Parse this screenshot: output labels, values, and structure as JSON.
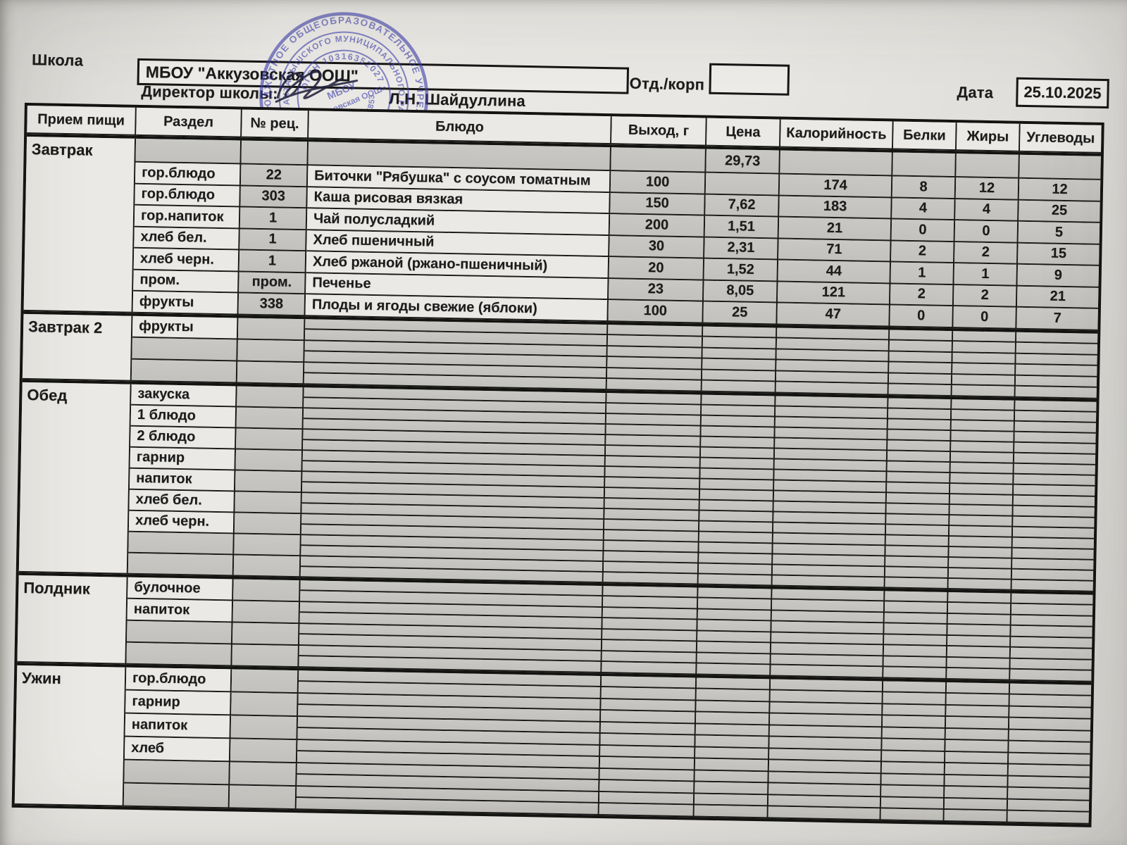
{
  "header": {
    "school_label": "Школа",
    "school_name": "МБОУ \"Аккузовская ООШ\"",
    "director_label": "Директор школы:",
    "director_name": "Л.Н. Шайдуллина",
    "dept_label": "Отд./корп",
    "dept_value": "",
    "date_label": "Дата",
    "date_value": "25.10.2025",
    "stamp": {
      "outer_ring": "БЮДЖЕТНОЕ ОБЩЕОБРАЗОВАТЕЛЬНОЕ УЧРЕЖДЕНИЕ «АККУЗОВСКАЯ ОСНОВНАЯ ОБЩЕОБРАЗОВАТЕЛЬНАЯ ШКОЛА»",
      "middle_ring": "АКТАНЫШСКОГО МУНИЦИПАЛЬНОГО РАЙОНА РЕСПУБЛИКИ ТАТАРСТАН",
      "ogrn_ring": "ОГРН 1031635202774",
      "center_line1": "МБОУ",
      "center_line2": "«Аккузовская ООШ»",
      "inn_text": "ИНН 1604005853",
      "color": "#3d3dab"
    }
  },
  "table": {
    "columns": [
      "Прием пищи",
      "Раздел",
      "№ рец.",
      "Блюдо",
      "Выход, г",
      "Цена",
      "Калорийность",
      "Белки",
      "Жиры",
      "Углеводы"
    ],
    "sections": [
      {
        "meal": "Завтрак",
        "split": false,
        "rows": [
          {
            "razdel": "",
            "rec": "",
            "dish": "",
            "out": "",
            "price": "29,73",
            "cal": "",
            "prot": "",
            "fat": "",
            "carb": ""
          },
          {
            "razdel": "гор.блюдо",
            "rec": "22",
            "dish": "Биточки \"Рябушка\" с соусом томатным",
            "out": "100",
            "price": "",
            "cal": "174",
            "prot": "8",
            "fat": "12",
            "carb": "12"
          },
          {
            "razdel": "гор.блюдо",
            "rec": "303",
            "dish": "Каша рисовая вязкая",
            "out": "150",
            "price": "7,62",
            "cal": "183",
            "prot": "4",
            "fat": "4",
            "carb": "25"
          },
          {
            "razdel": "гор.напиток",
            "rec": "1",
            "dish": "Чай полусладкий",
            "out": "200",
            "price": "1,51",
            "cal": "21",
            "prot": "0",
            "fat": "0",
            "carb": "5"
          },
          {
            "razdel": "хлеб бел.",
            "rec": "1",
            "dish": "Хлеб пшеничный",
            "out": "30",
            "price": "2,31",
            "cal": "71",
            "prot": "2",
            "fat": "2",
            "carb": "15"
          },
          {
            "razdel": "хлеб черн.",
            "rec": "1",
            "dish": "Хлеб ржаной (ржано-пшеничный)",
            "out": "20",
            "price": "1,52",
            "cal": "44",
            "prot": "1",
            "fat": "1",
            "carb": "9"
          },
          {
            "razdel": "пром.",
            "rec": "пром.",
            "dish": "Печенье",
            "out": "23",
            "price": "8,05",
            "cal": "121",
            "prot": "2",
            "fat": "2",
            "carb": "21"
          },
          {
            "razdel": "фрукты",
            "rec": "338",
            "dish": "Плоды и ягоды свежие (яблоки)",
            "out": "100",
            "price": "25",
            "cal": "47",
            "prot": "0",
            "fat": "0",
            "carb": "7"
          }
        ]
      },
      {
        "meal": "Завтрак 2",
        "split": true,
        "rows": [
          {
            "razdel": "фрукты"
          },
          {},
          {}
        ]
      },
      {
        "meal": "Обед",
        "split": true,
        "rows": [
          {
            "razdel": "закуска"
          },
          {
            "razdel": "1 блюдо"
          },
          {
            "razdel": "2 блюдо"
          },
          {
            "razdel": "гарнир"
          },
          {
            "razdel": "напиток"
          },
          {
            "razdel": "хлеб бел."
          },
          {
            "razdel": "хлеб черн."
          },
          {},
          {}
        ]
      },
      {
        "meal": "Полдник",
        "split": true,
        "rows": [
          {
            "razdel": "булочное"
          },
          {
            "razdel": "напиток"
          },
          {},
          {}
        ]
      },
      {
        "meal": "Ужин",
        "split": true,
        "rows": [
          {
            "razdel": "гор.блюдо"
          },
          {
            "razdel": "гарнир"
          },
          {
            "razdel": "напиток"
          },
          {
            "razdel": "хлеб"
          },
          {},
          {}
        ]
      }
    ]
  }
}
